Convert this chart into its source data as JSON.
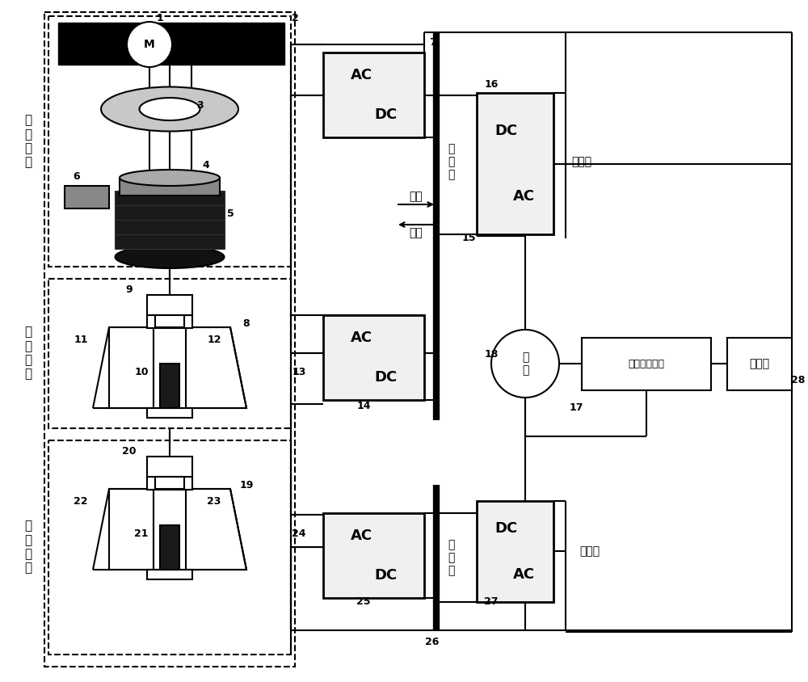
{
  "bg_color": "#ffffff",
  "figsize": [
    10.0,
    8.44
  ],
  "dpi": 100,
  "labels": {
    "zhong_li": "重\n力\n储\n能",
    "chu_neng_feilun": "储\n能\n飞\n轮",
    "tiao_pin_feilun": "调\n频\n飞\n轮",
    "fang_dian": "放电",
    "chong_dian": "充电",
    "zhi_liu_ce_top": "直\n流\n侧",
    "zhi_liu_ce_bot": "直\n流\n侧",
    "dian_wang_ce_top": "电网侧",
    "dian_wang_ce_bot": "电网侧",
    "dian_wang": "电\n网",
    "neng_liang": "能量管理系统",
    "kong_zhi": "控制器",
    "M_label": "M"
  }
}
